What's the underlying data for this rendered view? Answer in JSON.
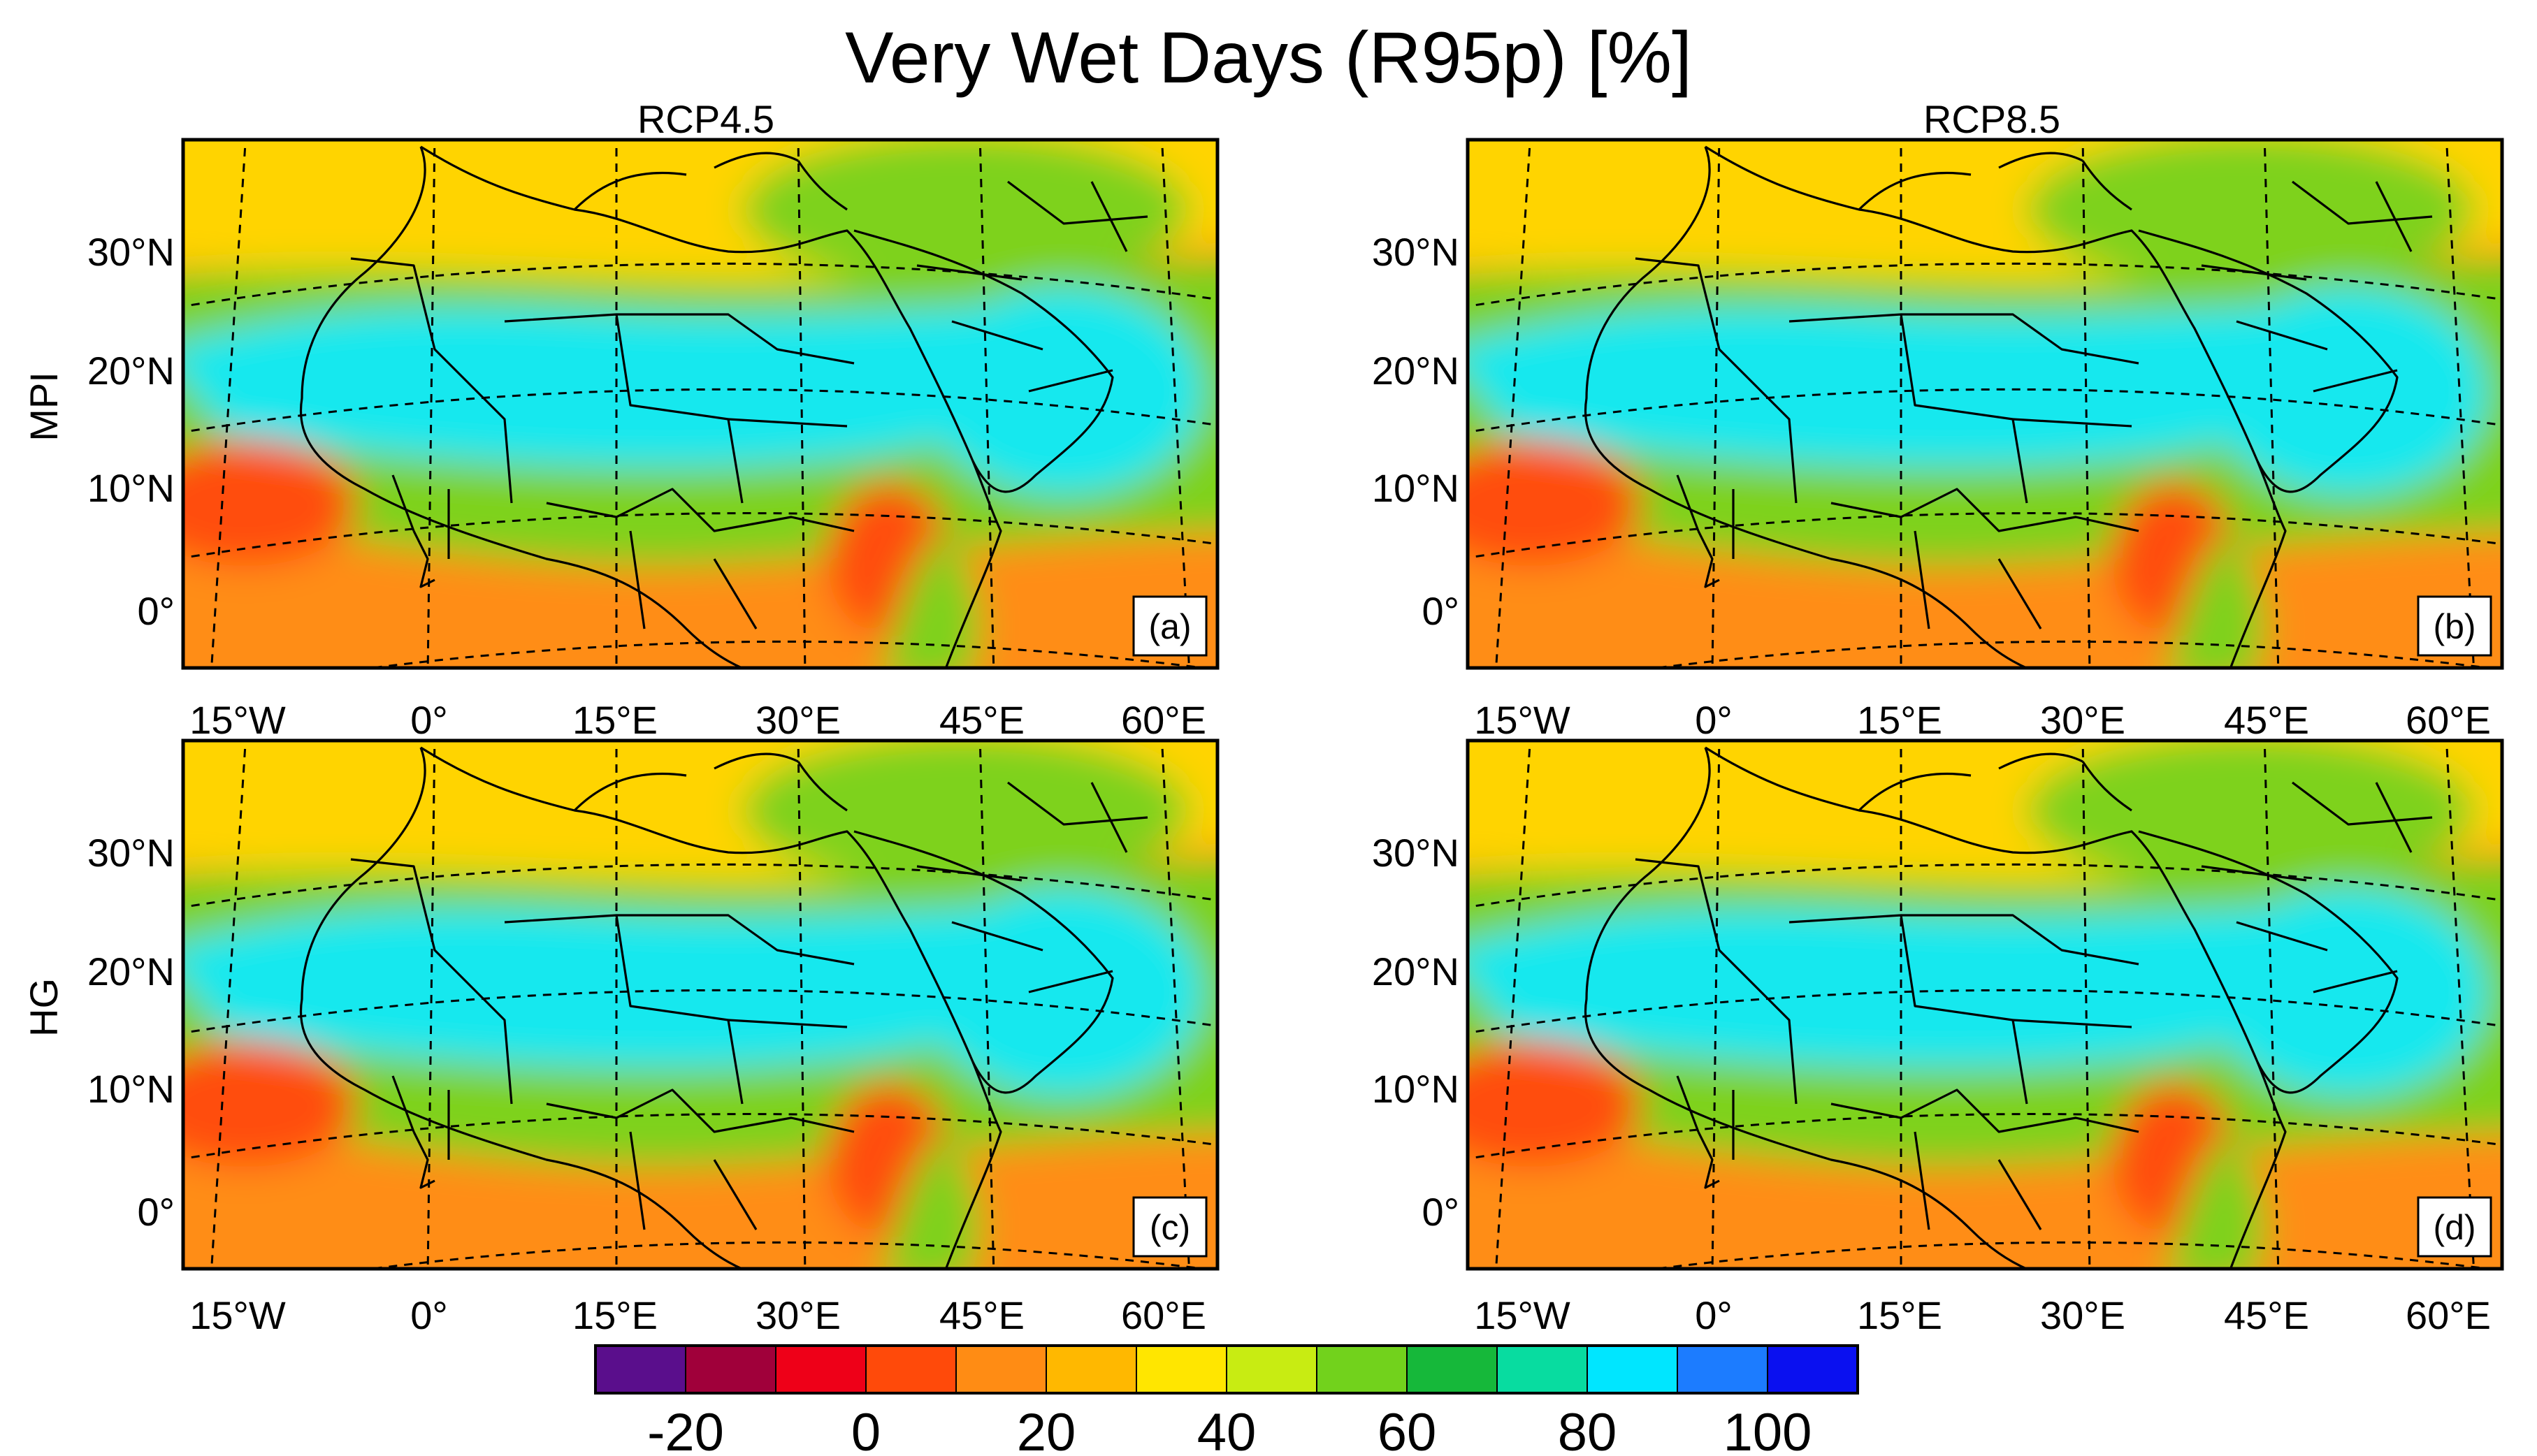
{
  "title": "Very Wet Days (R95p) [%]",
  "columns": [
    "RCP4.5",
    "RCP8.5"
  ],
  "rows": [
    "MPI",
    "HG"
  ],
  "lat_labels": [
    "30°N",
    "20°N",
    "10°N",
    "0°"
  ],
  "lon_labels": [
    "15°W",
    "0°",
    "15°E",
    "30°E",
    "45°E",
    "60°E"
  ],
  "panels": [
    {
      "label": "(a)",
      "scenario": "RCP4.5",
      "model": "MPI"
    },
    {
      "label": "(b)",
      "scenario": "RCP8.5",
      "model": "MPI"
    },
    {
      "label": "(c)",
      "scenario": "RCP4.5",
      "model": "HG"
    },
    {
      "label": "(d)",
      "scenario": "RCP8.5",
      "model": "HG"
    }
  ],
  "colorbar": {
    "colors": [
      "#5a0e8c",
      "#a0003a",
      "#ee0018",
      "#ff4a0a",
      "#ff8c14",
      "#ffb800",
      "#ffe600",
      "#c8ec12",
      "#72d21c",
      "#16b83a",
      "#08dca0",
      "#00e6ff",
      "#1c7cff",
      "#0a10f0"
    ],
    "tick_labels": [
      "-20",
      "0",
      "20",
      "40",
      "60",
      "80",
      "100"
    ]
  },
  "palette": {
    "ocean": "#ff9a10",
    "sahara": "#15e8ee",
    "sahel": "#7ed21c",
    "tropics": "#ff8d14",
    "med": "#ffd400",
    "dry_spot": "#ff4d0a"
  }
}
